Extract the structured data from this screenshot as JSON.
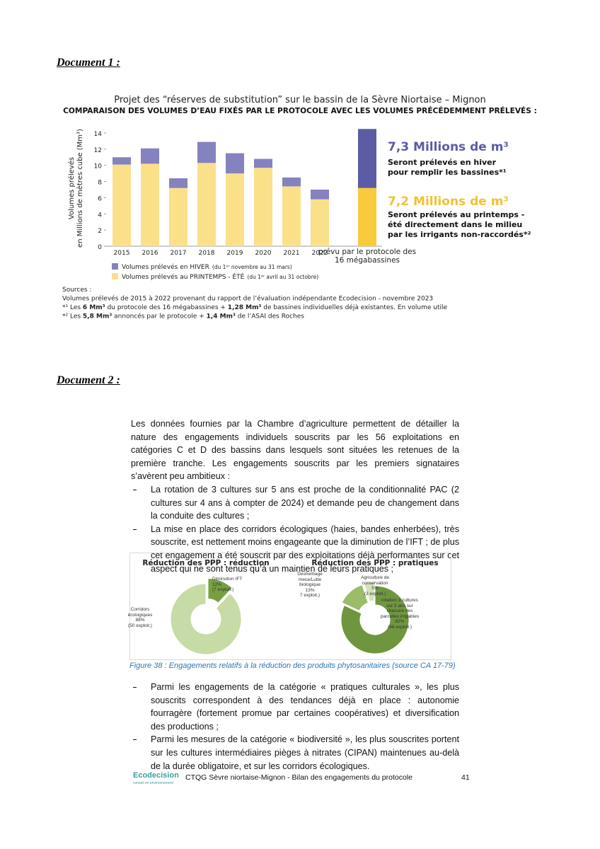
{
  "doc1": {
    "heading": "Document 1 :"
  },
  "chart_data": [
    {
      "type": "bar",
      "stacked": true,
      "title": "Projet des “réserves de substitution” sur le bassin de la Sèvre Niortaise – Mignon",
      "subtitle": "COMPARAISON DES VOLUMES D’EAU FIXÉS PAR LE PROTOCOLE AVEC LES VOLUMES PRÉCÉDEMMENT PRÉLEVÉS :",
      "ylabel": [
        "Volumes prélevés",
        "en Millions de mètres cube (Mm³)"
      ],
      "categories": [
        "2015",
        "2016",
        "2017",
        "2018",
        "2019",
        "2020",
        "2021",
        "2022",
        "prévu par le protocole des 16 mégabassines"
      ],
      "series": [
        {
          "name": "Volumes prélevés en HIVER",
          "note": "(du 1ᵉʳ novembre au 31 mars)",
          "color": "#8582c0",
          "last_color": "#5b5ba6",
          "values": [
            0.9,
            1.9,
            1.2,
            2.6,
            2.5,
            1.1,
            1.1,
            1.2,
            7.3
          ]
        },
        {
          "name": "Volumes prélevés au PRINTEMPS - ÉTÉ",
          "note": "(du 1ᵉʳ avril au 31 octobre)",
          "color": "#fbe08a",
          "last_color": "#f7cb3c",
          "values": [
            10.1,
            10.2,
            7.2,
            10.3,
            9.0,
            9.7,
            7.4,
            5.8,
            7.2
          ]
        }
      ],
      "ylim": [
        0,
        14
      ],
      "yticks": [
        0,
        2,
        4,
        6,
        8,
        10,
        12,
        14
      ],
      "annotations": [
        {
          "title": "7,3 Millions de m³",
          "lines": [
            "Seront prélevés en hiver",
            "pour remplir les bassines*¹"
          ],
          "color": "#5b5ba6"
        },
        {
          "title": "7,2 Millions de m³",
          "lines": [
            "Seront prélevés au printemps -",
            "été directement dans le milieu",
            "par les irrigants non-raccordés*²"
          ],
          "color": "#f2c232"
        }
      ],
      "sources": [
        [
          "Sources :"
        ],
        [
          "Volumes prélevés de 2015 à 2022 provenant du rapport de l’évaluation indépendante Ecodecision - novembre 2023"
        ],
        [
          "*¹ Les ",
          "6 Mm³",
          " du protocole des 16 mégabassines + ",
          "1,28 Mm³",
          " de bassines individuelles déjà existantes. En volume utile"
        ],
        [
          "*² Les ",
          "5,8 Mm³",
          " annoncés par le protocole + ",
          "1,4 Mm³",
          " de l’ASAI des Roches"
        ]
      ]
    },
    {
      "type": "pie",
      "donut": true,
      "title": "Réduction des PPP : réduction",
      "categories": [
        "Diminution IFT",
        "Corridors écologiques"
      ],
      "values": [
        12,
        88
      ],
      "value_labels": [
        "12%",
        "88%"
      ],
      "notes": [
        "(7 exploit.)",
        "(50 exploit.)"
      ],
      "colors": [
        "#77a043",
        "#c7dba6"
      ]
    },
    {
      "type": "pie",
      "donut": true,
      "title": "Réduction des PPP : pratiques",
      "categories": [
        "rotation 3 cultures sur 5 ans sur chacune des parcelles irrigables",
        "Desherbage meca/Lutte biologique",
        "Agriculture de conservation"
      ],
      "values": [
        82,
        13,
        5
      ],
      "value_labels": [
        "82%",
        "13%",
        "5%"
      ],
      "notes": [
        "(46 exploit.)",
        "7 exploit.)",
        "(3 exploit.)"
      ],
      "colors": [
        "#6f963f",
        "#9cbc68",
        "#d4e2bc"
      ]
    }
  ],
  "doc2": {
    "heading": "Document 2 :",
    "intro": "Les données fournies par la Chambre d’agriculture permettent de détailler la nature des engagements individuels souscrits par les 56 exploitations en catégories C et D des bassins dans lesquels sont situées les retenues de la première tranche. Les engagements souscrits par les premiers signataires s’avèrent peu ambitieux :",
    "bullets1": [
      "La rotation de 3 cultures sur 5 ans est proche de la conditionnalité PAC (2 cultures sur 4 ans à compter de 2024) et demande peu de changement dans la conduite des cultures ;",
      "La mise en place des corridors écologiques (haies, bandes enherbées), très souscrite, est nettement moins engageante que la diminution de l’IFT ; de plus cet engagement a été souscrit par des exploitations déjà performantes sur cet aspect qui ne sont tenus qu’à un maintien de leurs pratiques ;"
    ],
    "caption": "Figure 38 : Engagements relatifs à la réduction des produits phytosanitaires (source CA 17-79)",
    "bullets2": [
      "Parmi les engagements de la catégorie « pratiques culturales », les plus souscrits correspondent à des tendances déjà en place : autonomie fourragère (fortement promue par certaines coopératives) et diversification des productions ;",
      "Parmi les mesures de la catégorie « biodiversité », les plus souscrites portent sur les cultures intermédiaires pièges à nitrates (CIPAN) maintenues au-delà de la durée obligatoire, et sur les corridors écologiques."
    ],
    "footer": {
      "logo": "Ecodecision",
      "logo_sub": "conseil en environnement",
      "text": "CTQG Sèvre niortaise-Mignon - Bilan des engagements du protocole",
      "page": "41"
    }
  }
}
